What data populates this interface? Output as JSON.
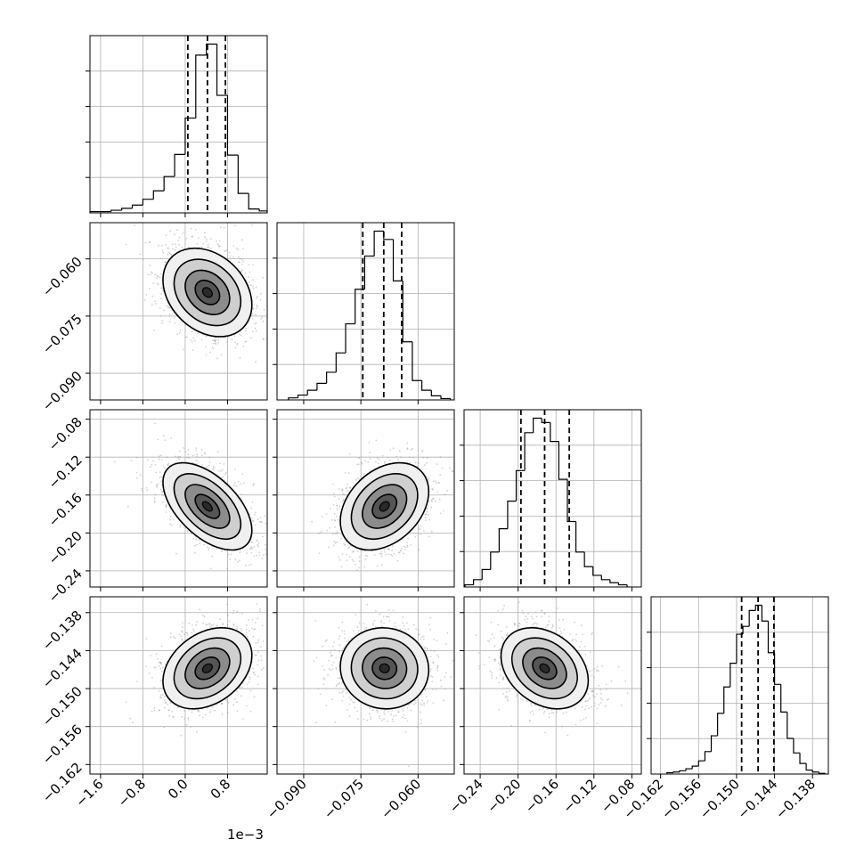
{
  "chart_data": {
    "type": "corner",
    "x_offset_text": "1e−3",
    "colors": {
      "line": "#000000",
      "grid": "#b0b0b0",
      "points": "#9a9a9a",
      "density_dark": "#2a2a2a",
      "density_light": "#f0f0f0"
    },
    "grid": true,
    "params": [
      {
        "id": "p0",
        "axis_range": [
          -1.8,
          1.55
        ],
        "ticks": [
          -1.6,
          -0.8,
          0.0,
          0.8
        ],
        "tick_labels": [
          "−1.6",
          "−0.8",
          "0.0",
          "0.8"
        ],
        "quantiles": [
          0.05,
          0.42,
          0.76
        ],
        "hist_edges": [
          -1.8,
          -1.6,
          -1.4,
          -1.2,
          -1.0,
          -0.8,
          -0.6,
          -0.4,
          -0.2,
          0.0,
          0.2,
          0.4,
          0.6,
          0.8,
          1.0,
          1.2,
          1.4,
          1.55
        ],
        "hist_counts": [
          2,
          2,
          4,
          7,
          12,
          21,
          34,
          56,
          90,
          146,
          243,
          260,
          181,
          89,
          30,
          6,
          3
        ]
      },
      {
        "id": "p1",
        "axis_range": [
          -0.097,
          -0.0505
        ],
        "ticks": [
          -0.09,
          -0.075,
          -0.06
        ],
        "tick_labels": [
          "−0.090",
          "−0.075",
          "−0.060"
        ],
        "quantiles": [
          -0.0745,
          -0.069,
          -0.0643
        ],
        "hist_edges": [
          -0.094,
          -0.0915,
          -0.089,
          -0.0865,
          -0.084,
          -0.0815,
          -0.079,
          -0.0765,
          -0.074,
          -0.0715,
          -0.069,
          -0.0665,
          -0.064,
          -0.0615,
          -0.059,
          -0.0565,
          -0.054,
          -0.0515
        ],
        "hist_counts": [
          3,
          7,
          14,
          24,
          40,
          68,
          110,
          160,
          208,
          244,
          232,
          172,
          84,
          28,
          14,
          6,
          2
        ]
      },
      {
        "id": "p2",
        "axis_range": [
          -0.257,
          -0.07
        ],
        "ticks": [
          -0.24,
          -0.2,
          -0.16,
          -0.12,
          -0.08
        ],
        "tick_labels": [
          "−0.24",
          "−0.20",
          "−0.16",
          "−0.12",
          "−0.08"
        ],
        "quantiles": [
          -0.197,
          -0.172,
          -0.146
        ],
        "hist_edges": [
          -0.256,
          -0.247,
          -0.238,
          -0.229,
          -0.22,
          -0.211,
          -0.202,
          -0.193,
          -0.184,
          -0.175,
          -0.166,
          -0.157,
          -0.148,
          -0.139,
          -0.13,
          -0.121,
          -0.112,
          -0.103,
          -0.094,
          -0.085
        ],
        "hist_counts": [
          3,
          10,
          24,
          48,
          80,
          118,
          160,
          212,
          232,
          226,
          200,
          148,
          90,
          48,
          28,
          16,
          10,
          6,
          3
        ]
      },
      {
        "id": "p3",
        "axis_range": [
          -0.1635,
          -0.1355
        ],
        "ticks": [
          -0.162,
          -0.156,
          -0.15,
          -0.144,
          -0.138
        ],
        "tick_labels": [
          "−0.162",
          "−0.156",
          "−0.150",
          "−0.144",
          "−0.138"
        ],
        "quantiles": [
          -0.1492,
          -0.1466,
          -0.1441
        ],
        "hist_edges": [
          -0.161,
          -0.16,
          -0.159,
          -0.158,
          -0.157,
          -0.156,
          -0.155,
          -0.154,
          -0.153,
          -0.152,
          -0.151,
          -0.15,
          -0.149,
          -0.148,
          -0.147,
          -0.146,
          -0.145,
          -0.144,
          -0.143,
          -0.142,
          -0.141,
          -0.14,
          -0.139,
          -0.138,
          -0.137,
          -0.136
        ],
        "hist_counts": [
          2,
          3,
          5,
          8,
          12,
          20,
          34,
          58,
          92,
          132,
          168,
          212,
          224,
          248,
          256,
          232,
          184,
          136,
          94,
          54,
          32,
          16,
          6,
          3,
          1
        ]
      }
    ],
    "pairs": [
      {
        "x": "p0",
        "y": "p1",
        "center": [
          0.42,
          -0.0688
        ],
        "sigma": [
          0.42,
          0.0058
        ],
        "rho": -0.28
      },
      {
        "x": "p0",
        "y": "p2",
        "center": [
          0.42,
          -0.172
        ],
        "sigma": [
          0.42,
          0.023
        ],
        "rho": -0.55
      },
      {
        "x": "p1",
        "y": "p2",
        "center": [
          -0.0688,
          -0.172
        ],
        "sigma": [
          0.0058,
          0.023
        ],
        "rho": 0.34
      },
      {
        "x": "p0",
        "y": "p3",
        "center": [
          0.42,
          -0.1468
        ],
        "sigma": [
          0.42,
          0.0032
        ],
        "rho": 0.32
      },
      {
        "x": "p1",
        "y": "p3",
        "center": [
          -0.0688,
          -0.1468
        ],
        "sigma": [
          0.0058,
          0.0032
        ],
        "rho": -0.04
      },
      {
        "x": "p2",
        "y": "p3",
        "center": [
          -0.172,
          -0.1468
        ],
        "sigma": [
          0.023,
          0.0032
        ],
        "rho": -0.3
      }
    ]
  }
}
